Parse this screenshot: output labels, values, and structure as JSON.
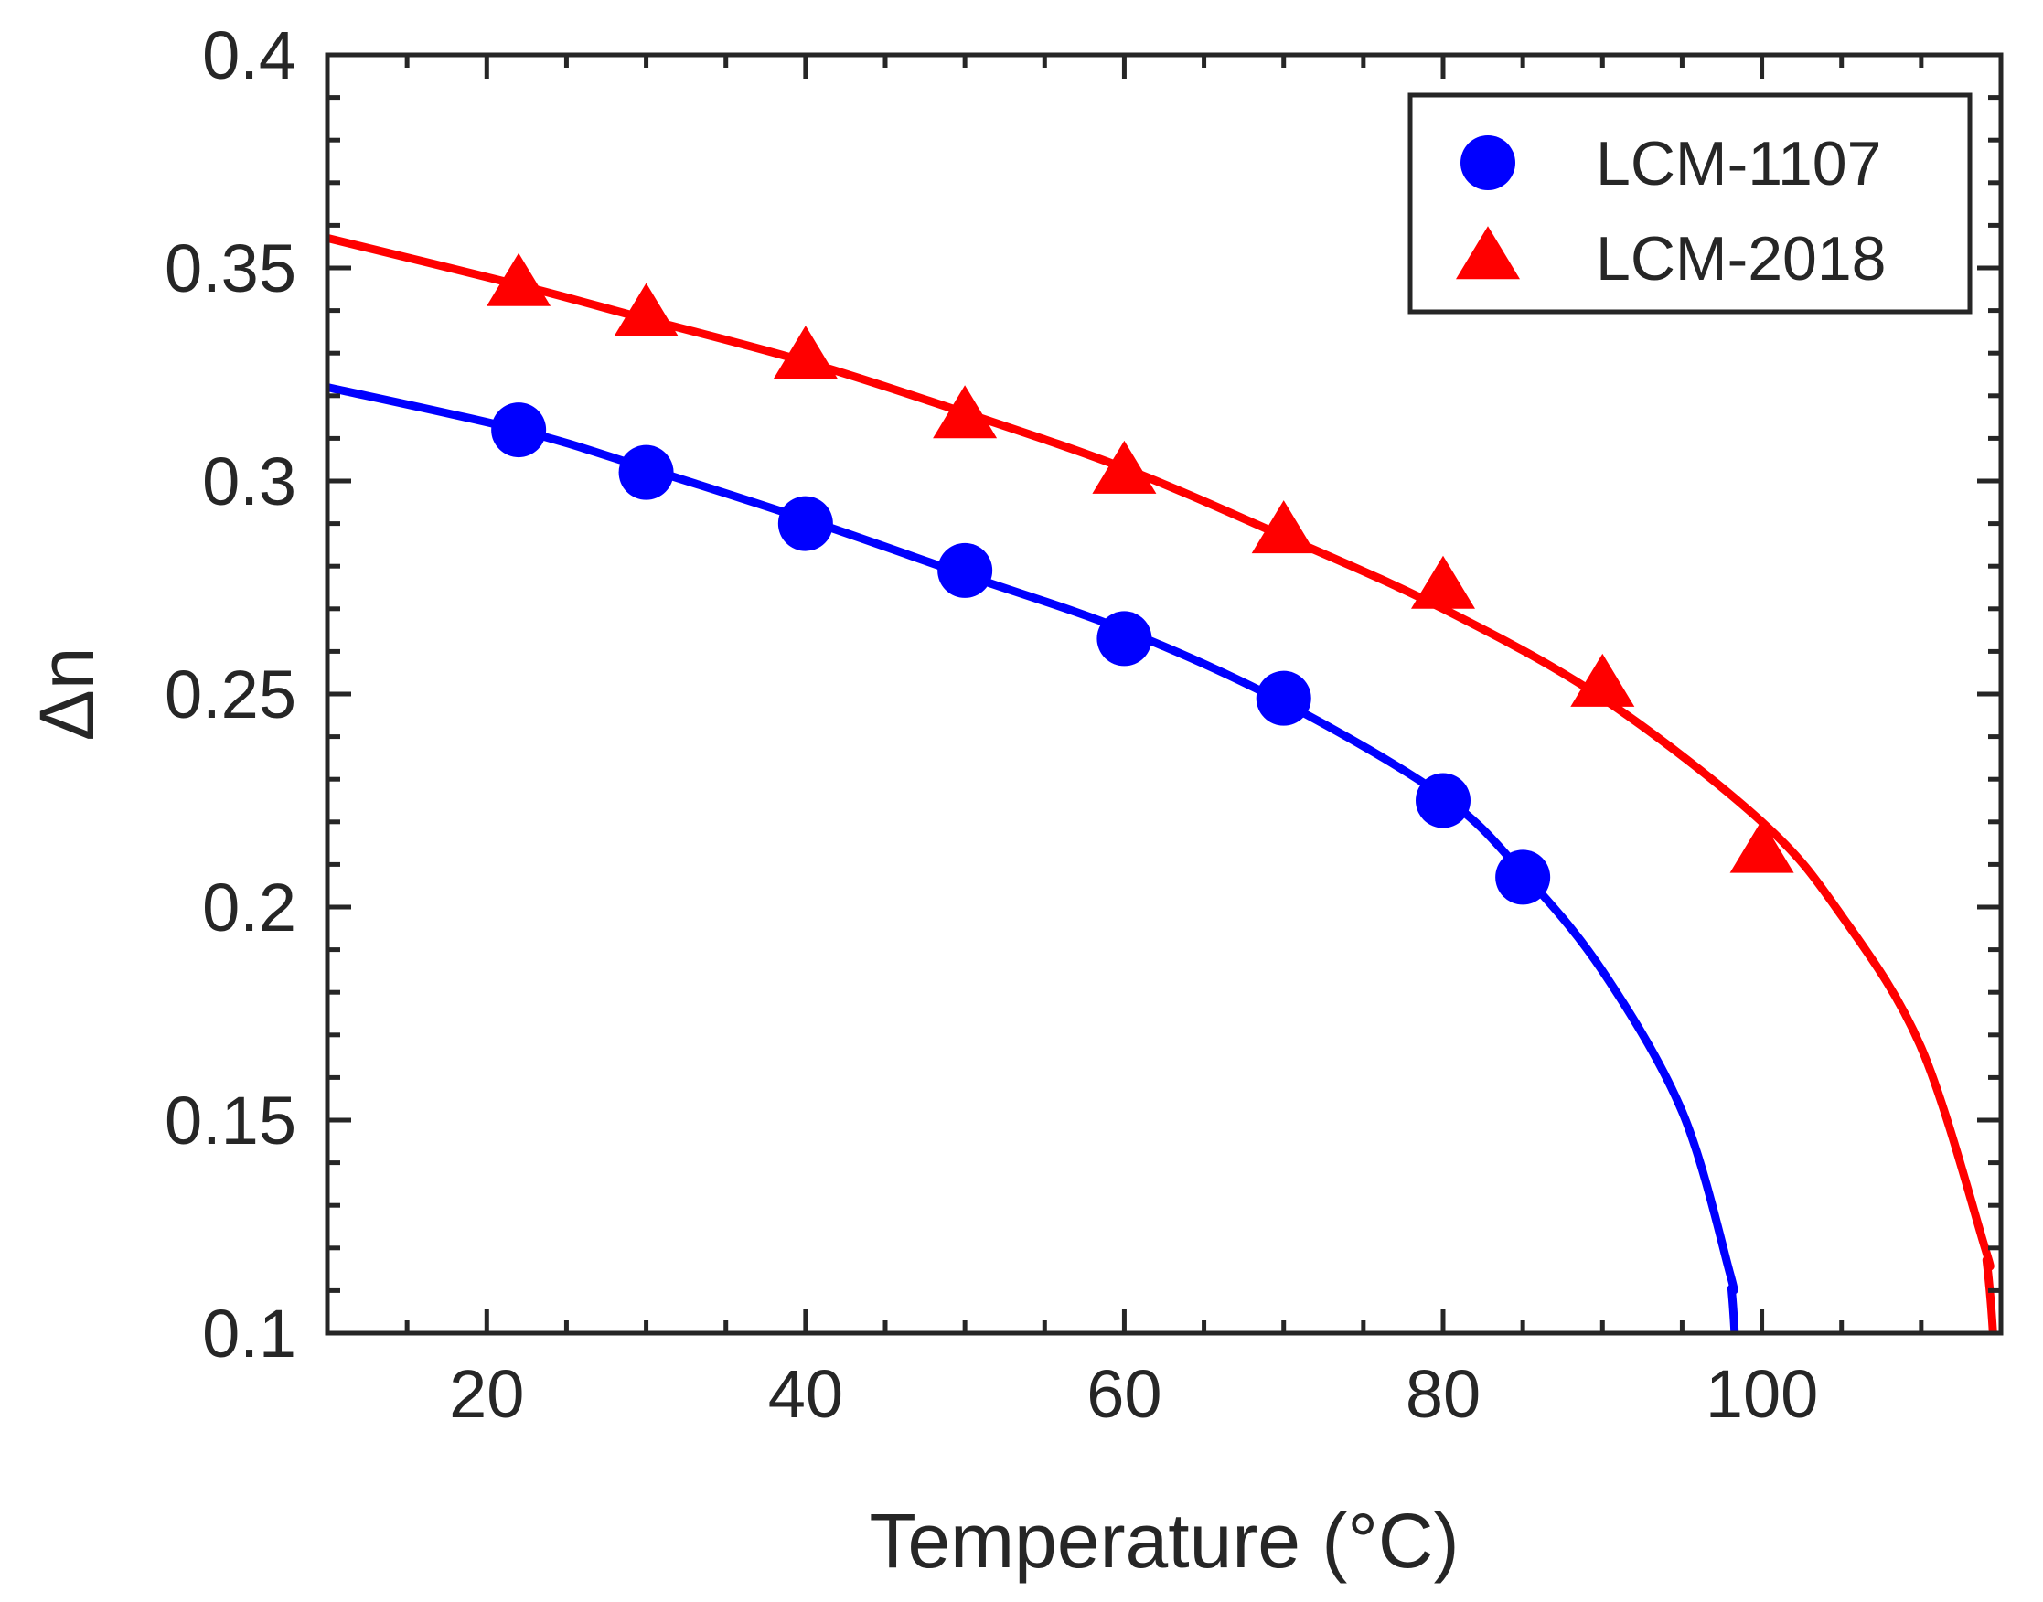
{
  "chart_data": {
    "type": "scatter",
    "title": "",
    "xlabel": "Temperature (°C)",
    "ylabel": "Δn",
    "xlim": [
      10,
      115
    ],
    "ylim": [
      0.1,
      0.4
    ],
    "x_ticks": [
      20,
      40,
      60,
      80,
      100
    ],
    "x_tick_labels": [
      "20",
      "40",
      "60",
      "80",
      "100"
    ],
    "y_ticks": [
      0.1,
      0.15,
      0.2,
      0.25,
      0.3,
      0.35,
      0.4
    ],
    "y_tick_labels": [
      "0.1",
      "0.15",
      "0.2",
      "0.25",
      "0.3",
      "0.35",
      "0.4"
    ],
    "grid": false,
    "legend_position": "top-right",
    "series": [
      {
        "name": "LCM-1107",
        "color": "#0000ff",
        "marker": "circle",
        "x": [
          22,
          30,
          40,
          50,
          60,
          70,
          80,
          85
        ],
        "y": [
          0.312,
          0.302,
          0.29,
          0.279,
          0.263,
          0.249,
          0.225,
          0.207
        ],
        "fit": {
          "type": "line",
          "clearing_point": 98.5,
          "x_end": 98.4,
          "x": [
            10,
            22,
            30,
            40,
            50,
            60,
            70,
            80,
            85,
            90,
            95,
            98
          ],
          "y": [
            0.322,
            0.312,
            0.303,
            0.291,
            0.278,
            0.265,
            0.248,
            0.226,
            0.208,
            0.185,
            0.152,
            0.114
          ]
        }
      },
      {
        "name": "LCM-2018",
        "color": "#ff0000",
        "marker": "triangle",
        "x": [
          22,
          30,
          40,
          50,
          60,
          70,
          80,
          90,
          100
        ],
        "y": [
          0.346,
          0.339,
          0.329,
          0.315,
          0.302,
          0.288,
          0.275,
          0.252,
          0.213
        ],
        "fit": {
          "type": "line",
          "clearing_point": 114.8,
          "x_end": 114.7,
          "x": [
            10,
            22,
            30,
            40,
            50,
            60,
            70,
            80,
            90,
            100,
            105,
            110,
            114
          ],
          "y": [
            0.357,
            0.346,
            0.338,
            0.328,
            0.316,
            0.303,
            0.287,
            0.27,
            0.249,
            0.22,
            0.198,
            0.167,
            0.12
          ]
        }
      }
    ]
  }
}
